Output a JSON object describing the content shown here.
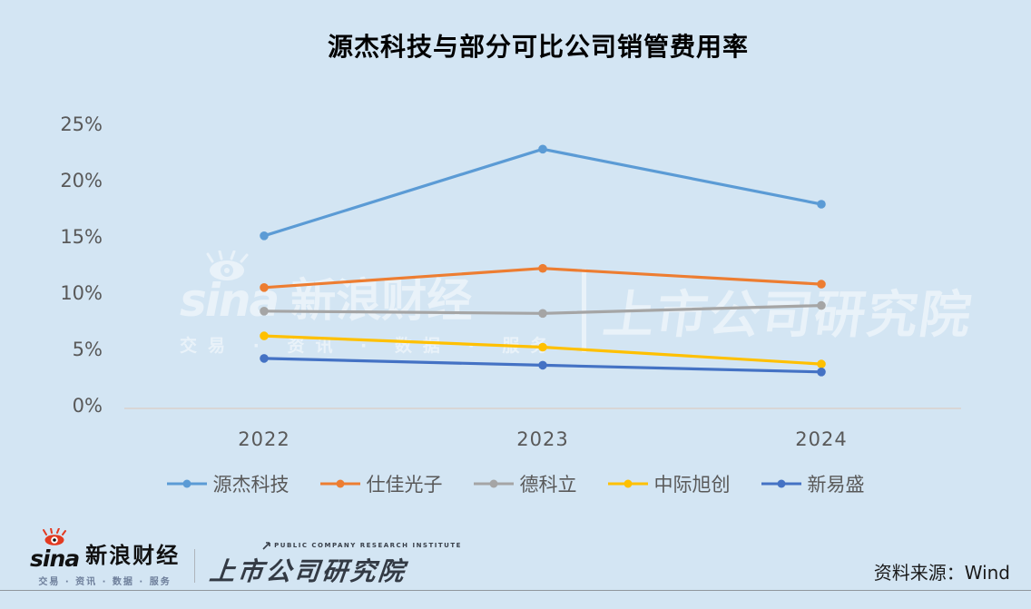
{
  "chart_data": {
    "type": "line",
    "title": "源杰科技与部分可比公司销管费用率",
    "categories": [
      "2022",
      "2023",
      "2024"
    ],
    "series": [
      {
        "name": "源杰科技",
        "color": "#5B9BD5",
        "values": [
          15.1,
          22.8,
          17.9
        ]
      },
      {
        "name": "仕佳光子",
        "color": "#ED7D31",
        "values": [
          10.5,
          12.2,
          10.8
        ]
      },
      {
        "name": "德科立",
        "color": "#A5A5A5",
        "values": [
          8.4,
          8.2,
          8.9
        ]
      },
      {
        "name": "中际旭创",
        "color": "#FFC000",
        "values": [
          6.2,
          5.2,
          3.7
        ]
      },
      {
        "name": "新易盛",
        "color": "#4472C4",
        "values": [
          4.2,
          3.6,
          3.0
        ]
      }
    ],
    "xlabel": "",
    "ylabel": "",
    "ylim": [
      0,
      25
    ],
    "ytick_labels": [
      "0%",
      "5%",
      "10%",
      "15%",
      "20%",
      "25%"
    ],
    "grid": false,
    "legend_position": "bottom"
  },
  "watermark": {
    "sina_text": "sina",
    "sina_cn": "新浪财经",
    "sina_sub": "交易 · 资讯 · 数据 · 服务",
    "institute": "上市公司研究院"
  },
  "footer": {
    "sina_logo_text": "sina",
    "sina_logo_cn": "新浪财经",
    "sina_logo_sub": "交易 · 资讯 · 数据 · 服务",
    "institute_en": "PUBLIC COMPANY RESEARCH INSTITUTE",
    "institute_cn": "上市公司研究院",
    "source": "资料来源：Wind"
  },
  "colors": {
    "background": "#D3E5F3",
    "axis_line": "#D9D2CC",
    "tick_label": "#595959",
    "title": "#000000"
  }
}
